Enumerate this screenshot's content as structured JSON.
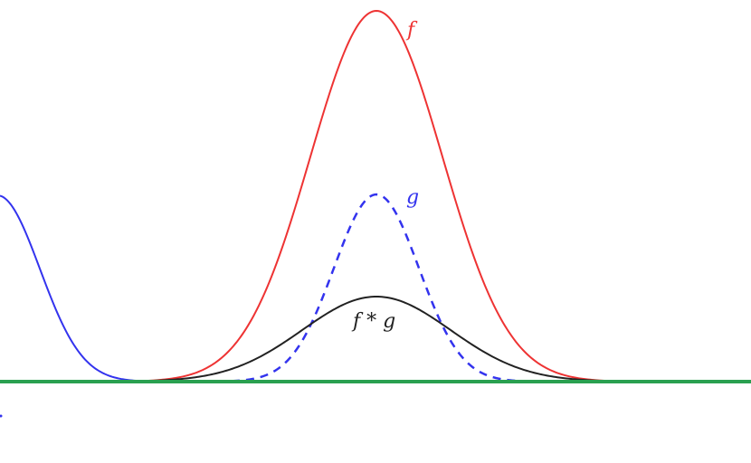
{
  "labels": {
    "f": "f",
    "g": "g",
    "conv": "f * g"
  },
  "colors": {
    "f": "#ee3333",
    "g": "#3333ee",
    "conv": "#222222",
    "axis": "#2aa050",
    "shifted_g": "#3333ee"
  },
  "curves": {
    "f": {
      "style": "solid"
    },
    "g": {
      "style": "dashed"
    },
    "conv": {
      "style": "solid"
    },
    "shifted_g": {
      "style": "solid"
    }
  }
}
